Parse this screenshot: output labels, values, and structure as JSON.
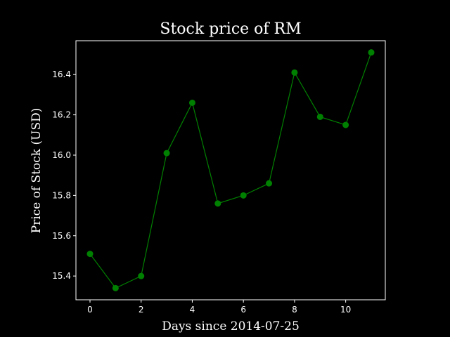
{
  "chart_data": {
    "type": "line",
    "title": "Stock price of RM",
    "xlabel": "Days since 2014-07-25",
    "ylabel": "Price of Stock (USD)",
    "x": [
      0,
      1,
      2,
      3,
      4,
      5,
      6,
      7,
      8,
      9,
      10,
      11
    ],
    "series": [
      {
        "name": "RM",
        "values": [
          15.51,
          15.34,
          15.4,
          16.01,
          16.26,
          15.76,
          15.8,
          15.86,
          16.41,
          16.19,
          16.15,
          16.51
        ],
        "color": "#008000",
        "marker": "circle"
      }
    ],
    "xlim": [
      -0.55,
      11.55
    ],
    "ylim": [
      15.282,
      16.568
    ],
    "xticks": [
      0,
      2,
      4,
      6,
      8,
      10
    ],
    "xtick_labels": [
      "0",
      "2",
      "4",
      "6",
      "8",
      "10"
    ],
    "yticks": [
      15.4,
      15.6,
      15.8,
      16.0,
      16.2,
      16.4
    ],
    "ytick_labels": [
      "15.4",
      "15.6",
      "15.8",
      "16.0",
      "16.2",
      "16.4"
    ],
    "grid": false,
    "background": "#000000",
    "axes_color": "#ffffff"
  }
}
